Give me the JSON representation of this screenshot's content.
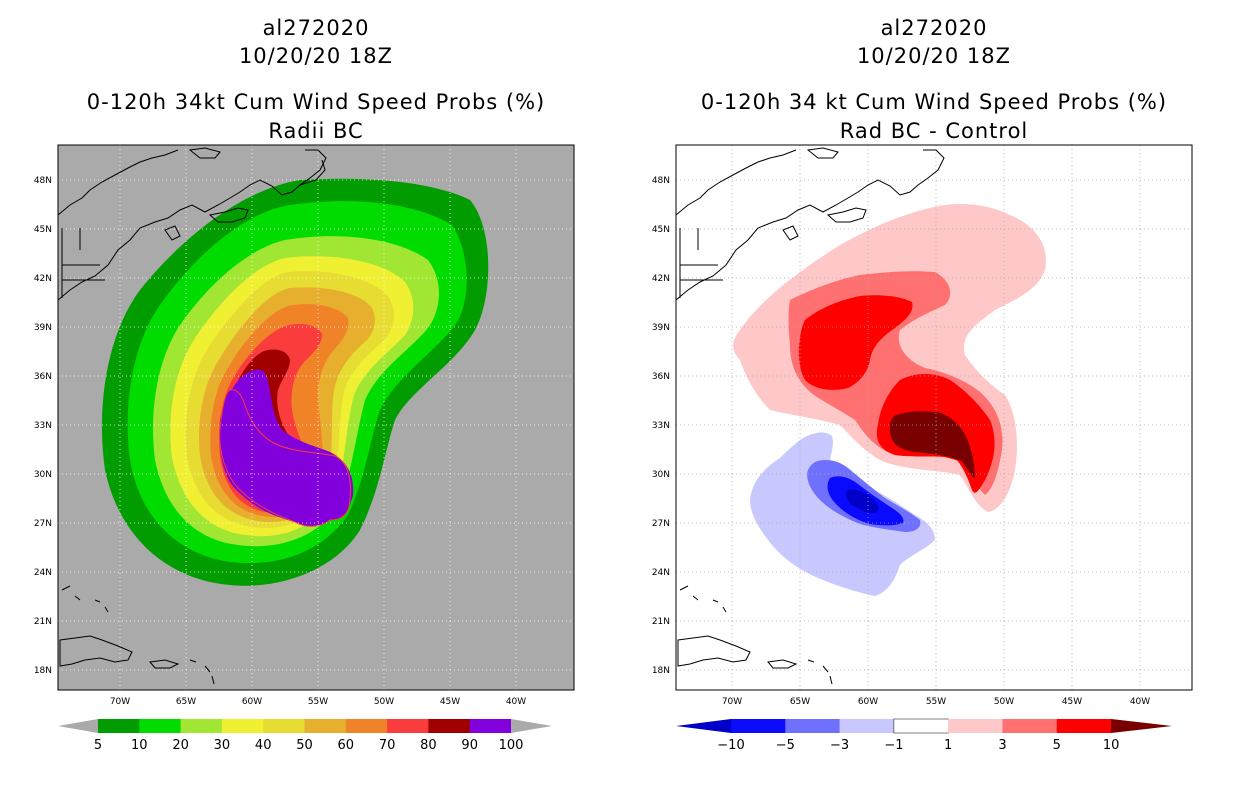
{
  "panels": [
    {
      "id": "left",
      "storm_id": "al272020",
      "datetime": "10/20/20 18Z",
      "title": "0-120h 34kt Cum Wind Speed Probs (%)",
      "subtitle": "Radii BC",
      "background": "#aaaaaa",
      "colorbar": {
        "labels": [
          "5",
          "10",
          "20",
          "30",
          "40",
          "50",
          "60",
          "70",
          "80",
          "90",
          "100"
        ],
        "colors": [
          "#009c00",
          "#00dc00",
          "#a0e632",
          "#f0f032",
          "#e6dc32",
          "#e6af2d",
          "#f08228",
          "#fa3c3c",
          "#a00000",
          "#8200dc"
        ],
        "end_color": "#aaaaaa"
      }
    },
    {
      "id": "right",
      "storm_id": "al272020",
      "datetime": "10/20/20 18Z",
      "title": "0-120h 34 kt Cum Wind Speed Probs (%)",
      "subtitle": "Rad BC - Control",
      "background": "#ffffff",
      "colorbar": {
        "labels": [
          "-10",
          "-5",
          "-3",
          "-1",
          "1",
          "3",
          "5",
          "10"
        ],
        "colors": [
          "#0000c8",
          "#0a0aff",
          "#7070ff",
          "#c8c8ff",
          "#ffffff",
          "#ffc8c8",
          "#ff7070",
          "#ff0000",
          "#780000"
        ],
        "end_color_low": "#0000c8",
        "end_color_high": "#780000"
      }
    }
  ],
  "map": {
    "lon_labels": [
      "70W",
      "65W",
      "60W",
      "55W",
      "50W",
      "45W",
      "40W"
    ],
    "lat_labels": [
      "48N",
      "45N",
      "42N",
      "39N",
      "36N",
      "33N",
      "30N",
      "27N",
      "24N",
      "21N",
      "18N"
    ]
  }
}
